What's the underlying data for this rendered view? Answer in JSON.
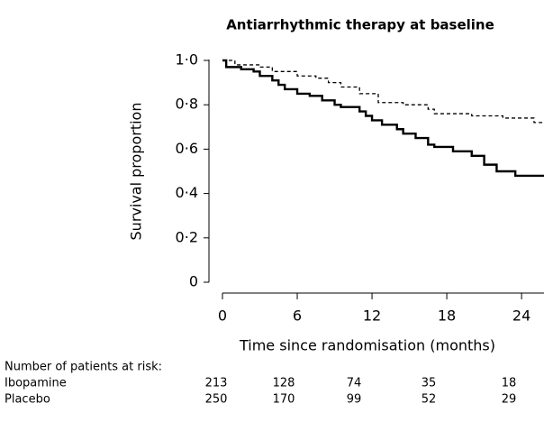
{
  "chart_data": {
    "type": "step",
    "title": "Antiarrhythmic therapy at baseline",
    "ylabel": "Survival proportion",
    "xlabel": "Time since randomisation (months)",
    "xlim": [
      0,
      25.8
    ],
    "ylim": [
      0,
      1
    ],
    "xticks": [
      0,
      6,
      12,
      18,
      24
    ],
    "yticks": [
      0,
      {
        "value": 0.2,
        "label": "0·2"
      },
      {
        "value": 0.4,
        "label": "0·4"
      },
      {
        "value": 0.6,
        "label": "0·6"
      },
      {
        "value": 0.8,
        "label": "0·8"
      },
      {
        "value": 1,
        "label": "1·0"
      }
    ],
    "series": [
      {
        "color": "#000000",
        "dash": true,
        "x": [
          0,
          1,
          3,
          4,
          6,
          7.5,
          8.5,
          9.5,
          11,
          12.5,
          14.5,
          16.5,
          17,
          20,
          22.5,
          25,
          25.8
        ],
        "values": [
          1.0,
          0.98,
          0.97,
          0.95,
          0.93,
          0.92,
          0.9,
          0.88,
          0.85,
          0.81,
          0.8,
          0.78,
          0.76,
          0.75,
          0.74,
          0.72,
          0.72
        ]
      },
      {
        "color": "#000000",
        "dash": false,
        "x": [
          0,
          0.3,
          1.5,
          2.5,
          3,
          4,
          4.5,
          5,
          6,
          7,
          8,
          9,
          9.5,
          11,
          11.5,
          12,
          12.8,
          14,
          14.5,
          15.5,
          16.5,
          17,
          18.5,
          20,
          21,
          22,
          23.5,
          25.8
        ],
        "values": [
          1.0,
          0.97,
          0.96,
          0.95,
          0.93,
          0.91,
          0.89,
          0.87,
          0.85,
          0.84,
          0.82,
          0.8,
          0.79,
          0.77,
          0.75,
          0.73,
          0.71,
          0.69,
          0.67,
          0.65,
          0.62,
          0.61,
          0.59,
          0.57,
          0.53,
          0.5,
          0.48,
          0.48
        ]
      }
    ],
    "risk_table": {
      "title": "Number of patients at risk:",
      "rows": [
        {
          "label": "Ibopamine",
          "values": [
            213,
            128,
            74,
            35,
            18
          ]
        },
        {
          "label": "Placebo",
          "values": [
            250,
            170,
            99,
            52,
            29
          ]
        }
      ]
    }
  }
}
